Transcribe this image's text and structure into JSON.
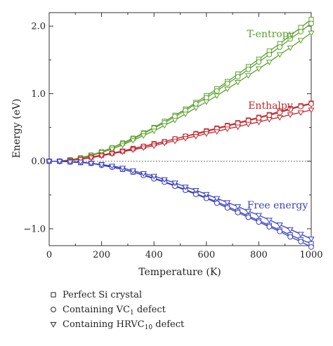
{
  "chart_data": {
    "type": "line",
    "xlabel": "Temperature (K)",
    "ylabel": "Energy (eV)",
    "xlim": [
      0,
      1000
    ],
    "ylim": [
      -1.25,
      2.2
    ],
    "x_ticks": [
      0,
      200,
      400,
      600,
      800,
      1000
    ],
    "y_ticks": [
      -1.0,
      0.0,
      1.0,
      2.0
    ],
    "x_tick_labels": [
      "0",
      "200",
      "400",
      "600",
      "800",
      "1000"
    ],
    "y_tick_labels": [
      "−1.0",
      "0.0",
      "1.0",
      "2.0"
    ],
    "zero_reference_line": "dotted",
    "grid": false,
    "x": [
      0,
      40,
      80,
      120,
      160,
      200,
      240,
      280,
      320,
      360,
      400,
      440,
      480,
      520,
      560,
      600,
      640,
      680,
      720,
      760,
      800,
      840,
      880,
      920,
      960,
      1000
    ],
    "groups": [
      {
        "label": "T-entropy",
        "color": "#5aa02c",
        "series": [
          {
            "marker": "square",
            "values": [
              0.0,
              0.0,
              0.02,
              0.05,
              0.09,
              0.14,
              0.2,
              0.27,
              0.34,
              0.42,
              0.5,
              0.59,
              0.68,
              0.77,
              0.87,
              0.97,
              1.07,
              1.18,
              1.29,
              1.4,
              1.51,
              1.63,
              1.74,
              1.86,
              1.98,
              2.1
            ]
          },
          {
            "marker": "circle",
            "values": [
              0.0,
              0.0,
              0.02,
              0.05,
              0.09,
              0.14,
              0.2,
              0.26,
              0.33,
              0.41,
              0.49,
              0.57,
              0.66,
              0.75,
              0.85,
              0.94,
              1.04,
              1.15,
              1.25,
              1.36,
              1.47,
              1.58,
              1.69,
              1.81,
              1.92,
              2.04
            ]
          },
          {
            "marker": "triangle",
            "values": [
              0.0,
              0.0,
              0.02,
              0.04,
              0.08,
              0.13,
              0.18,
              0.24,
              0.31,
              0.38,
              0.45,
              0.53,
              0.61,
              0.7,
              0.79,
              0.88,
              0.97,
              1.07,
              1.17,
              1.27,
              1.37,
              1.47,
              1.58,
              1.68,
              1.79,
              1.9
            ]
          }
        ]
      },
      {
        "label": "Enthalpy",
        "color": "#c0282d",
        "series": [
          {
            "marker": "square",
            "values": [
              0.0,
              0.0,
              0.01,
              0.03,
              0.06,
              0.09,
              0.12,
              0.15,
              0.19,
              0.22,
              0.26,
              0.29,
              0.33,
              0.37,
              0.41,
              0.45,
              0.49,
              0.53,
              0.57,
              0.61,
              0.65,
              0.69,
              0.74,
              0.78,
              0.82,
              0.86
            ]
          },
          {
            "marker": "circle",
            "values": [
              0.0,
              0.0,
              0.01,
              0.03,
              0.06,
              0.09,
              0.12,
              0.15,
              0.18,
              0.22,
              0.25,
              0.29,
              0.33,
              0.37,
              0.4,
              0.44,
              0.48,
              0.52,
              0.56,
              0.6,
              0.64,
              0.68,
              0.72,
              0.77,
              0.81,
              0.85
            ]
          },
          {
            "marker": "triangle",
            "values": [
              0.0,
              0.0,
              0.01,
              0.03,
              0.05,
              0.08,
              0.11,
              0.14,
              0.17,
              0.2,
              0.23,
              0.27,
              0.3,
              0.34,
              0.37,
              0.41,
              0.44,
              0.48,
              0.51,
              0.55,
              0.58,
              0.62,
              0.65,
              0.69,
              0.72,
              0.76
            ]
          }
        ]
      },
      {
        "label": "Free energy",
        "color": "#3a3ec0",
        "series": [
          {
            "marker": "square",
            "values": [
              0.0,
              0.0,
              -0.01,
              -0.02,
              -0.03,
              -0.05,
              -0.08,
              -0.12,
              -0.16,
              -0.2,
              -0.25,
              -0.3,
              -0.36,
              -0.42,
              -0.48,
              -0.54,
              -0.6,
              -0.67,
              -0.74,
              -0.81,
              -0.88,
              -0.95,
              -1.02,
              -1.09,
              -1.16,
              -1.22
            ]
          },
          {
            "marker": "circle",
            "values": [
              0.0,
              0.0,
              -0.01,
              -0.02,
              -0.03,
              -0.06,
              -0.09,
              -0.12,
              -0.16,
              -0.21,
              -0.26,
              -0.31,
              -0.37,
              -0.43,
              -0.49,
              -0.55,
              -0.62,
              -0.69,
              -0.76,
              -0.83,
              -0.9,
              -0.97,
              -1.04,
              -1.12,
              -1.19,
              -1.27
            ]
          },
          {
            "marker": "triangle",
            "values": [
              0.0,
              0.0,
              -0.01,
              -0.01,
              -0.03,
              -0.05,
              -0.07,
              -0.1,
              -0.14,
              -0.18,
              -0.22,
              -0.27,
              -0.32,
              -0.38,
              -0.43,
              -0.49,
              -0.55,
              -0.61,
              -0.67,
              -0.74,
              -0.8,
              -0.87,
              -0.94,
              -1.01,
              -1.08,
              -1.15
            ]
          }
        ]
      }
    ],
    "legend": [
      {
        "marker": "square",
        "text": "Perfect Si crystal"
      },
      {
        "marker": "circle",
        "text": "Containing VC",
        "sub": "1",
        "suffix": " defect"
      },
      {
        "marker": "triangle",
        "text": "Containing HRVC",
        "sub": "10",
        "suffix": " defect"
      }
    ],
    "legend_placement": "bottom-left"
  }
}
